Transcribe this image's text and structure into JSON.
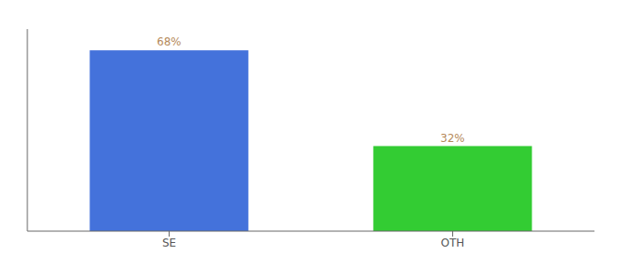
{
  "chart_data": {
    "type": "bar",
    "categories": [
      "SE",
      "OTH"
    ],
    "values": [
      68,
      32
    ],
    "value_labels": [
      "68%",
      "32%"
    ],
    "colors": [
      "#4472db",
      "#33cc33"
    ],
    "ylim": [
      0,
      76
    ],
    "grid": false,
    "data_labels": true,
    "tick_labels": "x"
  }
}
